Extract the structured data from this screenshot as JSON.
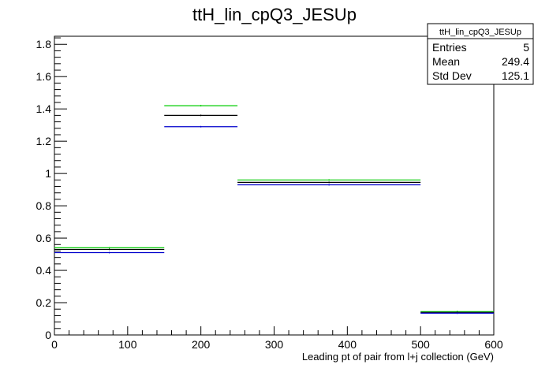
{
  "chart_data": {
    "type": "step-histogram",
    "title": "ttH_lin_cpQ3_JESUp",
    "xlabel": "Leading pt of pair from l+j collection (GeV)",
    "ylabel": "",
    "xlim": [
      0,
      600
    ],
    "ylim": [
      0,
      1.85
    ],
    "x_ticks": [
      0,
      100,
      200,
      300,
      400,
      500,
      600
    ],
    "y_ticks": [
      0,
      0.2,
      0.4,
      0.6,
      0.8,
      1,
      1.2,
      1.4,
      1.6,
      1.8
    ],
    "x_tick_labels": [
      "0",
      "100",
      "200",
      "300",
      "400",
      "500",
      "600"
    ],
    "y_tick_labels": [
      "0",
      "0.2",
      "0.4",
      "0.6",
      "0.8",
      "1",
      "1.2",
      "1.4",
      "1.6",
      "1.8"
    ],
    "bin_edges": [
      0,
      150,
      250,
      500,
      600
    ],
    "series": [
      {
        "color": "#00cc00",
        "values": [
          0.54,
          1.42,
          0.96,
          0.145
        ]
      },
      {
        "color": "#000000",
        "values": [
          0.53,
          1.36,
          0.945,
          0.14
        ]
      },
      {
        "color": "#0000cc",
        "values": [
          0.51,
          1.29,
          0.93,
          0.135
        ]
      }
    ],
    "legend": "top-right",
    "grid": false,
    "stats_box": {
      "title": "ttH_lin_cpQ3_JESUp",
      "rows": [
        {
          "label": "Entries",
          "value": "5"
        },
        {
          "label": "Mean",
          "value": "249.4"
        },
        {
          "label": "Std Dev",
          "value": "125.1"
        }
      ]
    }
  }
}
